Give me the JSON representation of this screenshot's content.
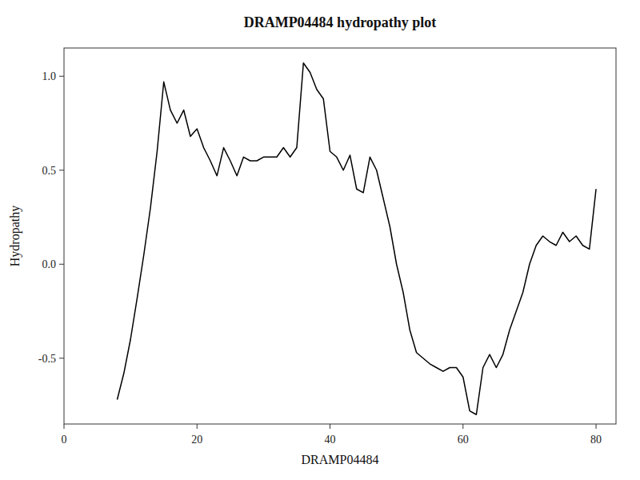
{
  "chart_data": {
    "type": "line",
    "title": "DRAMP04484 hydropathy plot",
    "xlabel": "DRAMP04484",
    "ylabel": "Hydropathy",
    "color": "black",
    "grid": false,
    "xlim": [
      0,
      83
    ],
    "ylim": [
      -0.85,
      1.15
    ],
    "xticks": [
      0,
      20,
      40,
      60,
      80
    ],
    "yticks": [
      -0.5,
      {
        "value": 0.0,
        "label": "0.0"
      },
      0.5,
      {
        "value": 1.0,
        "label": "1.0"
      }
    ],
    "x": [
      8,
      9,
      10,
      11,
      12,
      13,
      14,
      15,
      16,
      17,
      18,
      19,
      20,
      21,
      22,
      23,
      24,
      25,
      26,
      27,
      28,
      29,
      30,
      31,
      32,
      33,
      34,
      35,
      36,
      37,
      38,
      39,
      40,
      41,
      42,
      43,
      44,
      45,
      46,
      47,
      48,
      49,
      50,
      51,
      52,
      53,
      54,
      55,
      56,
      57,
      58,
      59,
      60,
      61,
      62,
      63,
      64,
      65,
      66,
      67,
      68,
      69,
      70,
      71,
      72,
      73,
      74,
      75,
      76,
      77,
      78,
      79,
      80
    ],
    "values": [
      -0.72,
      -0.58,
      -0.4,
      -0.18,
      0.05,
      0.3,
      0.6,
      0.97,
      0.82,
      0.75,
      0.82,
      0.68,
      0.72,
      0.62,
      0.55,
      0.47,
      0.62,
      0.55,
      0.47,
      0.57,
      0.55,
      0.55,
      0.57,
      0.57,
      0.57,
      0.62,
      0.57,
      0.62,
      1.07,
      1.02,
      0.93,
      0.88,
      0.6,
      0.57,
      0.5,
      0.58,
      0.4,
      0.38,
      0.57,
      0.5,
      0.35,
      0.2,
      0.0,
      -0.15,
      -0.35,
      -0.47,
      -0.5,
      -0.53,
      -0.55,
      -0.57,
      -0.55,
      -0.55,
      -0.6,
      -0.78,
      -0.8,
      -0.55,
      -0.48,
      -0.55,
      -0.48,
      -0.35,
      -0.25,
      -0.15,
      0.0,
      0.1,
      0.15,
      0.12,
      0.1,
      0.17,
      0.12,
      0.15,
      0.1,
      0.08,
      0.4
    ]
  }
}
